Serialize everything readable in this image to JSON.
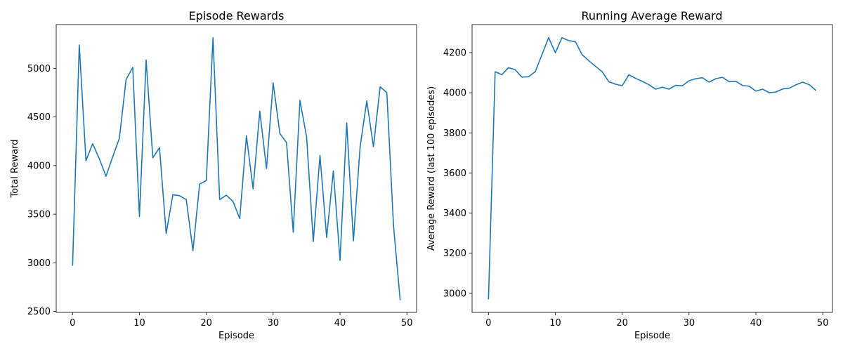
{
  "chart_data": [
    {
      "type": "line",
      "title": "Episode Rewards",
      "xlabel": "Episode",
      "ylabel": "Total Reward",
      "xlim": [
        -2.45,
        51.45
      ],
      "ylim": [
        2490,
        5450
      ],
      "xticks": [
        0,
        10,
        20,
        30,
        40,
        50
      ],
      "yticks": [
        2500,
        3000,
        3500,
        4000,
        4500,
        5000
      ],
      "grid": false,
      "x": [
        0,
        1,
        2,
        3,
        4,
        5,
        6,
        7,
        8,
        9,
        10,
        11,
        12,
        13,
        14,
        15,
        16,
        17,
        18,
        19,
        20,
        21,
        22,
        23,
        24,
        25,
        26,
        27,
        28,
        29,
        30,
        31,
        32,
        33,
        34,
        35,
        36,
        37,
        38,
        39,
        40,
        41,
        42,
        43,
        44,
        45,
        46,
        47,
        48,
        49
      ],
      "series": [
        {
          "values": [
            2970,
            5240,
            4050,
            4225,
            4070,
            3890,
            4090,
            4280,
            4885,
            5010,
            3475,
            5085,
            4080,
            4185,
            3300,
            3700,
            3690,
            3650,
            3125,
            3810,
            3845,
            5315,
            3650,
            3695,
            3630,
            3455,
            4305,
            3760,
            4560,
            3970,
            4850,
            4330,
            4235,
            3315,
            4670,
            4295,
            3220,
            4105,
            3260,
            3945,
            3025,
            4440,
            3225,
            4190,
            4665,
            4195,
            4810,
            4750,
            3380,
            2615
          ]
        }
      ]
    },
    {
      "type": "line",
      "title": "Running Average Reward",
      "xlabel": "Episode",
      "ylabel": "Average Reward (last 100 episodes)",
      "xlim": [
        -2.45,
        51.45
      ],
      "ylim": [
        2905,
        4340
      ],
      "xticks": [
        0,
        10,
        20,
        30,
        40,
        50
      ],
      "yticks": [
        3000,
        3200,
        3400,
        3600,
        3800,
        4000,
        4200
      ],
      "grid": false,
      "x": [
        0,
        1,
        2,
        3,
        4,
        5,
        6,
        7,
        8,
        9,
        10,
        11,
        12,
        13,
        14,
        15,
        16,
        17,
        18,
        19,
        20,
        21,
        22,
        23,
        24,
        25,
        26,
        27,
        28,
        29,
        30,
        31,
        32,
        33,
        34,
        35,
        36,
        37,
        38,
        39,
        40,
        41,
        42,
        43,
        44,
        45,
        46,
        47,
        48,
        49
      ],
      "series": [
        {
          "values": [
            2970,
            4105,
            4090,
            4125,
            4115,
            4078,
            4080,
            4105,
            4190,
            4275,
            4200,
            4275,
            4260,
            4255,
            4190,
            4160,
            4132,
            4105,
            4055,
            4043,
            4035,
            4090,
            4072,
            4057,
            4040,
            4018,
            4028,
            4018,
            4037,
            4035,
            4060,
            4070,
            4075,
            4053,
            4070,
            4077,
            4055,
            4057,
            4036,
            4033,
            4008,
            4018,
            4000,
            4004,
            4019,
            4023,
            4040,
            4053,
            4040,
            4011
          ]
        }
      ]
    }
  ]
}
